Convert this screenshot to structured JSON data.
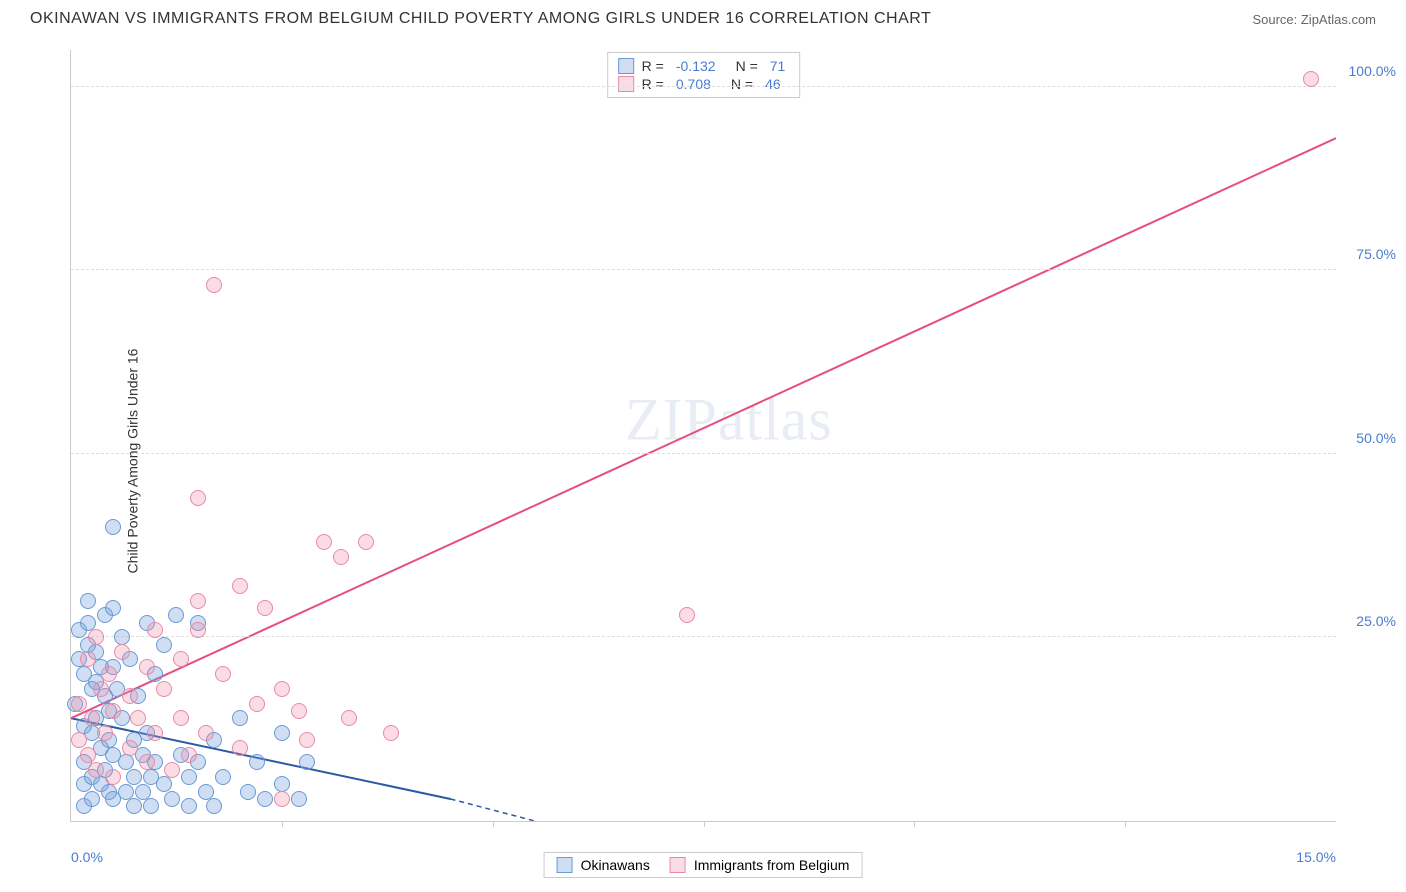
{
  "header": {
    "title": "OKINAWAN VS IMMIGRANTS FROM BELGIUM CHILD POVERTY AMONG GIRLS UNDER 16 CORRELATION CHART",
    "source": "Source: ZipAtlas.com"
  },
  "chart": {
    "type": "scatter",
    "ylabel": "Child Poverty Among Girls Under 16",
    "watermark": "ZIPatlas",
    "watermark_zip": "ZIP",
    "watermark_atlas": "atlas",
    "background_color": "#ffffff",
    "grid_color": "#dddddd",
    "axis_color": "#cccccc",
    "tick_label_color": "#4a7bd4",
    "xlim": [
      0,
      15
    ],
    "ylim": [
      0,
      105
    ],
    "x_ticks_minor": [
      2.5,
      5.0,
      7.5,
      10.0,
      12.5
    ],
    "x_tick_labels": [
      {
        "pos": 0,
        "label": "0.0%",
        "align": "left"
      },
      {
        "pos": 15,
        "label": "15.0%",
        "align": "right"
      }
    ],
    "y_gridlines": [
      25,
      50,
      75,
      100
    ],
    "y_tick_labels": [
      {
        "pos": 25,
        "label": "25.0%"
      },
      {
        "pos": 50,
        "label": "50.0%"
      },
      {
        "pos": 75,
        "label": "75.0%"
      },
      {
        "pos": 100,
        "label": "100.0%"
      }
    ],
    "series": [
      {
        "name": "Okinawans",
        "fill_color": "rgba(120,160,220,0.35)",
        "stroke_color": "#6a9ad4",
        "swatch_fill": "rgba(120,160,220,0.35)",
        "swatch_stroke": "#6a9ad4",
        "line_color": "#2a5aa4",
        "line_dash_after": true,
        "R": "-0.132",
        "N": "71",
        "trend": {
          "x1": 0,
          "y1": 14,
          "x2": 4.5,
          "y2": 3,
          "x2_dash": 4.5,
          "y2_dash": 3,
          "x3_dash": 5.5,
          "y3_dash": 0
        },
        "points": [
          [
            0.05,
            16
          ],
          [
            0.1,
            22
          ],
          [
            0.1,
            26
          ],
          [
            0.15,
            20
          ],
          [
            0.15,
            13
          ],
          [
            0.15,
            8
          ],
          [
            0.15,
            5
          ],
          [
            0.15,
            2
          ],
          [
            0.2,
            30
          ],
          [
            0.2,
            27
          ],
          [
            0.2,
            24
          ],
          [
            0.25,
            18
          ],
          [
            0.25,
            12
          ],
          [
            0.25,
            6
          ],
          [
            0.25,
            3
          ],
          [
            0.3,
            23
          ],
          [
            0.3,
            19
          ],
          [
            0.3,
            14
          ],
          [
            0.35,
            21
          ],
          [
            0.35,
            10
          ],
          [
            0.35,
            5
          ],
          [
            0.4,
            28
          ],
          [
            0.4,
            17
          ],
          [
            0.4,
            7
          ],
          [
            0.45,
            15
          ],
          [
            0.45,
            11
          ],
          [
            0.45,
            4
          ],
          [
            0.5,
            40
          ],
          [
            0.5,
            29
          ],
          [
            0.5,
            21
          ],
          [
            0.5,
            9
          ],
          [
            0.5,
            3
          ],
          [
            0.55,
            18
          ],
          [
            0.6,
            25
          ],
          [
            0.6,
            14
          ],
          [
            0.65,
            8
          ],
          [
            0.65,
            4
          ],
          [
            0.7,
            22
          ],
          [
            0.75,
            11
          ],
          [
            0.75,
            6
          ],
          [
            0.75,
            2
          ],
          [
            0.8,
            17
          ],
          [
            0.85,
            9
          ],
          [
            0.85,
            4
          ],
          [
            0.9,
            27
          ],
          [
            0.9,
            12
          ],
          [
            0.95,
            6
          ],
          [
            0.95,
            2
          ],
          [
            1.0,
            20
          ],
          [
            1.0,
            8
          ],
          [
            1.1,
            24
          ],
          [
            1.1,
            5
          ],
          [
            1.2,
            3
          ],
          [
            1.25,
            28
          ],
          [
            1.3,
            9
          ],
          [
            1.4,
            6
          ],
          [
            1.4,
            2
          ],
          [
            1.5,
            27
          ],
          [
            1.5,
            8
          ],
          [
            1.6,
            4
          ],
          [
            1.7,
            11
          ],
          [
            1.7,
            2
          ],
          [
            1.8,
            6
          ],
          [
            2.0,
            14
          ],
          [
            2.1,
            4
          ],
          [
            2.2,
            8
          ],
          [
            2.3,
            3
          ],
          [
            2.5,
            12
          ],
          [
            2.5,
            5
          ],
          [
            2.7,
            3
          ],
          [
            2.8,
            8
          ]
        ]
      },
      {
        "name": "Immigrants from Belgium",
        "fill_color": "rgba(240,140,170,0.30)",
        "stroke_color": "#e88aa8",
        "swatch_fill": "rgba(240,140,170,0.30)",
        "swatch_stroke": "#e88aa8",
        "line_color": "#e54f80",
        "line_dash_after": false,
        "R": "0.708",
        "N": "46",
        "trend": {
          "x1": 0,
          "y1": 14,
          "x2": 15,
          "y2": 93
        },
        "points": [
          [
            0.1,
            11
          ],
          [
            0.1,
            16
          ],
          [
            0.2,
            22
          ],
          [
            0.2,
            9
          ],
          [
            0.25,
            14
          ],
          [
            0.3,
            25
          ],
          [
            0.3,
            7
          ],
          [
            0.35,
            18
          ],
          [
            0.4,
            12
          ],
          [
            0.45,
            20
          ],
          [
            0.5,
            15
          ],
          [
            0.5,
            6
          ],
          [
            0.6,
            23
          ],
          [
            0.7,
            10
          ],
          [
            0.7,
            17
          ],
          [
            0.8,
            14
          ],
          [
            0.9,
            8
          ],
          [
            0.9,
            21
          ],
          [
            1.0,
            12
          ],
          [
            1.0,
            26
          ],
          [
            1.1,
            18
          ],
          [
            1.2,
            7
          ],
          [
            1.3,
            22
          ],
          [
            1.3,
            14
          ],
          [
            1.4,
            9
          ],
          [
            1.5,
            30
          ],
          [
            1.5,
            26
          ],
          [
            1.5,
            44
          ],
          [
            1.6,
            12
          ],
          [
            1.7,
            73
          ],
          [
            1.8,
            20
          ],
          [
            2.0,
            32
          ],
          [
            2.0,
            10
          ],
          [
            2.2,
            16
          ],
          [
            2.3,
            29
          ],
          [
            2.5,
            18
          ],
          [
            2.5,
            3
          ],
          [
            2.7,
            15
          ],
          [
            2.8,
            11
          ],
          [
            3.0,
            38
          ],
          [
            3.2,
            36
          ],
          [
            3.3,
            14
          ],
          [
            3.5,
            38
          ],
          [
            3.8,
            12
          ],
          [
            7.3,
            28
          ],
          [
            14.7,
            101
          ]
        ]
      }
    ],
    "legend_top": {
      "rows": [
        {
          "series_idx": 0,
          "r_label": "R =",
          "n_label": "N ="
        },
        {
          "series_idx": 1,
          "r_label": "R =",
          "n_label": "N ="
        }
      ]
    }
  }
}
